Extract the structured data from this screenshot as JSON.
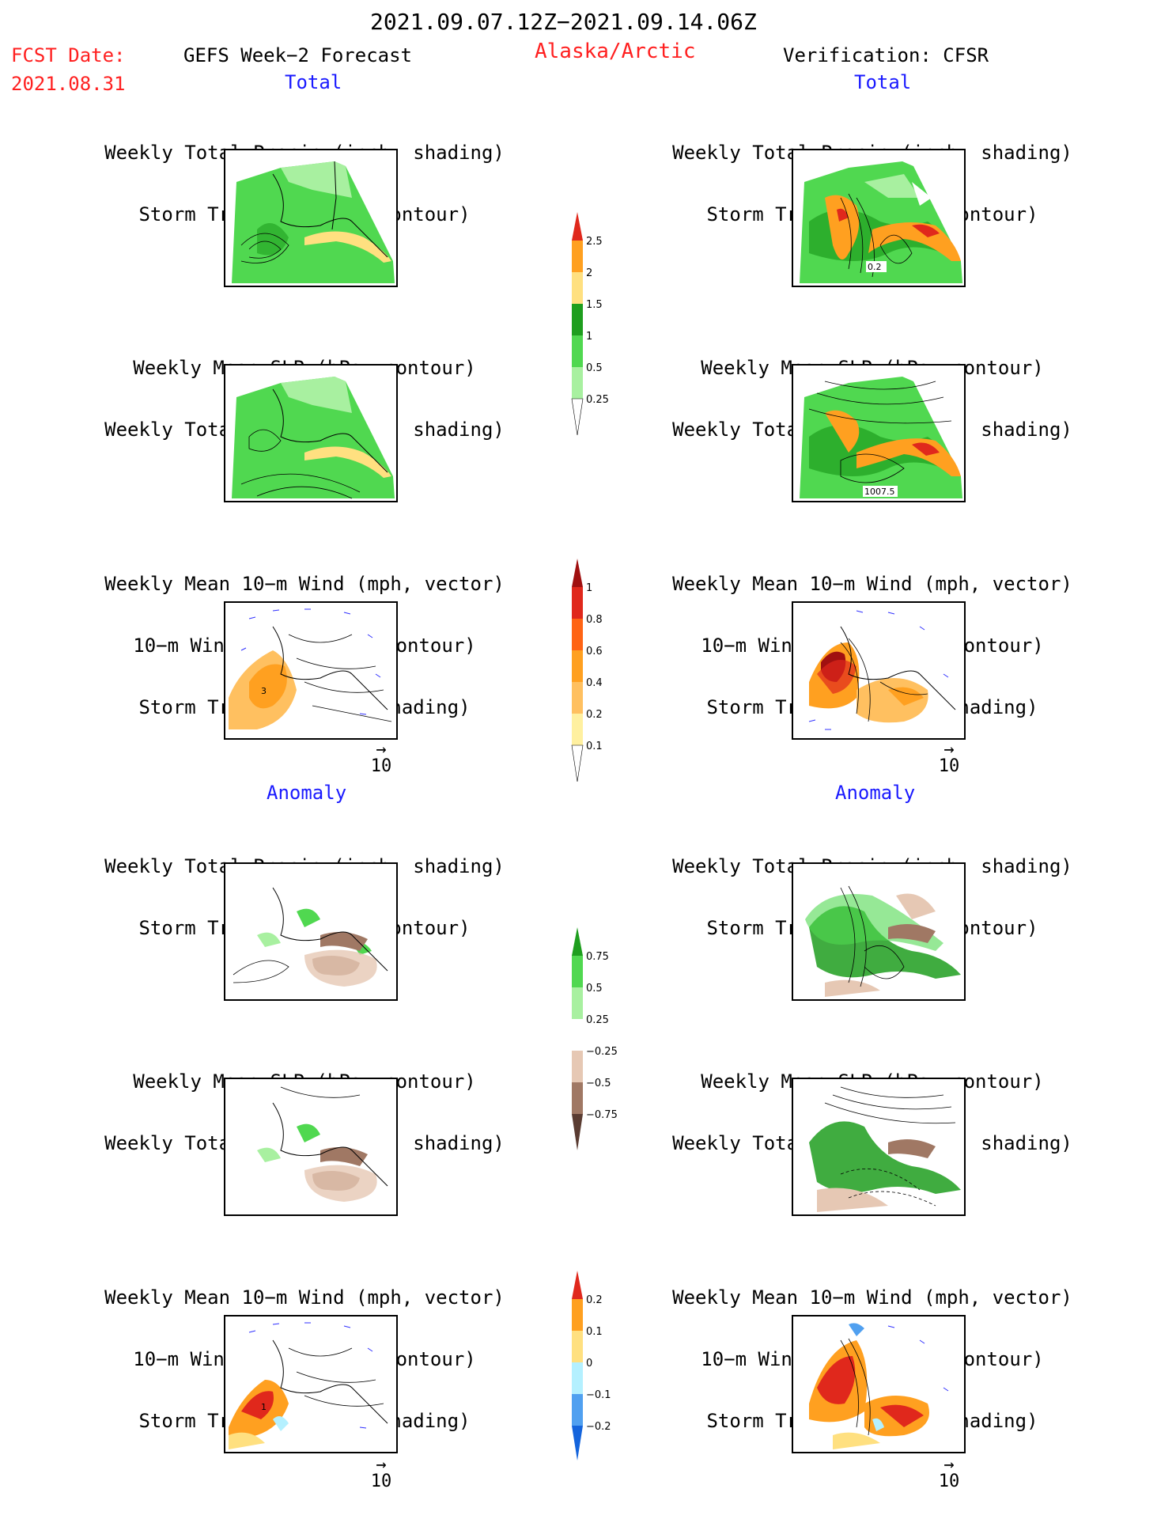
{
  "header": {
    "period": "2021.09.07.12Z−2021.09.14.06Z",
    "fcst_label": "FCST Date:",
    "fcst_date": "2021.08.31",
    "model": "GEFS Week−2 Forecast",
    "region": "Alaska/Arctic",
    "verification": "Verification: CFSR"
  },
  "sections": {
    "total": "Total",
    "anomaly": "Anomaly"
  },
  "panel_titles": {
    "precip_storm": [
      "Weekly Total Precip (inch, shading)",
      "Storm Track Density (contour)"
    ],
    "slp_precip": [
      "Weekly Mean SLP (hPa, contour)",
      "Weekly Total Precip (inch, shading)"
    ],
    "wind": [
      "Weekly Mean 10−m Wind (mph, vector)",
      "10−m Wind Speed (mph, contour)",
      "Storm Track Density (shading)"
    ]
  },
  "vector_ref": "10",
  "map_labels": {
    "total_right_precip": "0.2",
    "total_right_slp": "1007.5",
    "total_left_wind": "3",
    "anom_left_wind": "1"
  },
  "colorbars": {
    "precip_total": {
      "labels": [
        "2.5",
        "2",
        "1.5",
        "1",
        "0.5",
        "0.25"
      ],
      "colors": [
        "#e0281c",
        "#ffa020",
        "#ffe080",
        "#1e9e1e",
        "#50d850",
        "#a8f0a0"
      ]
    },
    "storm_total": {
      "labels": [
        "1",
        "0.8",
        "0.6",
        "0.4",
        "0.2",
        "0.1"
      ],
      "colors": [
        "#a01010",
        "#e0281c",
        "#ff6414",
        "#ffa020",
        "#ffc060",
        "#fff0a0"
      ]
    },
    "precip_anom": {
      "labels": [
        "0.75",
        "0.5",
        "0.25",
        "−0.25",
        "−0.5",
        "−0.75"
      ],
      "colors": [
        "#1e9e1e",
        "#50d850",
        "#a8f0a0",
        "#ffffff",
        "#e6c8b4",
        "#a07864",
        "#5a3c32"
      ]
    },
    "storm_anom": {
      "labels": [
        "0.2",
        "0.1",
        "0",
        "−0.1",
        "−0.2"
      ],
      "colors": [
        "#e0281c",
        "#ffa020",
        "#ffe080",
        "#b4f0ff",
        "#50a0f0",
        "#1464dc"
      ]
    }
  }
}
